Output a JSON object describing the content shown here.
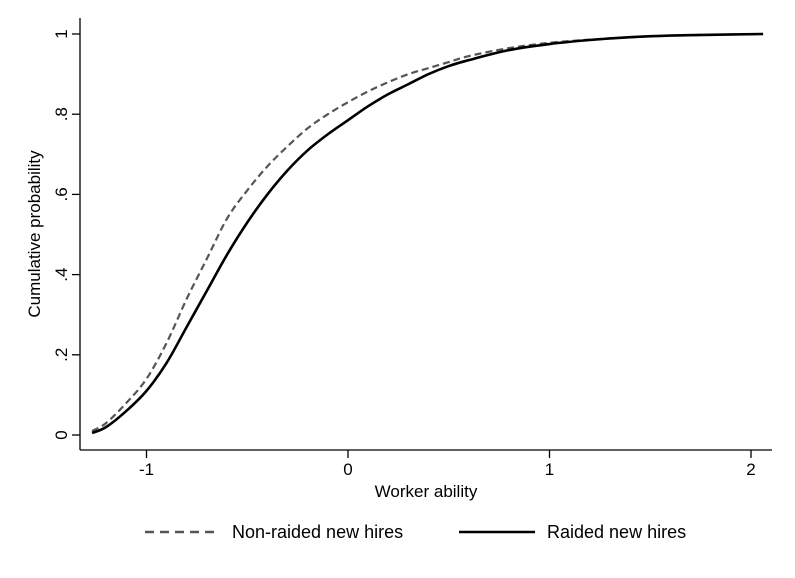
{
  "chart_data": {
    "type": "line",
    "title": "",
    "xlabel": "Worker ability",
    "ylabel": "Cumulative probability",
    "xlim": [
      -1.3,
      2.06
    ],
    "ylim": [
      0,
      1
    ],
    "xticks": [
      {
        "value": -1,
        "label": "-1"
      },
      {
        "value": 0,
        "label": "0"
      },
      {
        "value": 1,
        "label": "1"
      },
      {
        "value": 2,
        "label": "2"
      }
    ],
    "yticks": [
      {
        "value": 0,
        "label": "0"
      },
      {
        "value": 0.2,
        "label": ".2"
      },
      {
        "value": 0.4,
        "label": ".4"
      },
      {
        "value": 0.6,
        "label": ".6"
      },
      {
        "value": 0.8,
        "label": ".8"
      },
      {
        "value": 1,
        "label": "1"
      }
    ],
    "grid": false,
    "legend_position": "bottom",
    "series": [
      {
        "name": "Non-raided new hires",
        "style": "dashed",
        "color": "#555555",
        "points": [
          [
            -1.27,
            0.01
          ],
          [
            -1.2,
            0.03
          ],
          [
            -1.1,
            0.08
          ],
          [
            -1.0,
            0.14
          ],
          [
            -0.9,
            0.23
          ],
          [
            -0.8,
            0.34
          ],
          [
            -0.7,
            0.44
          ],
          [
            -0.6,
            0.54
          ],
          [
            -0.5,
            0.61
          ],
          [
            -0.4,
            0.67
          ],
          [
            -0.3,
            0.72
          ],
          [
            -0.2,
            0.765
          ],
          [
            -0.1,
            0.8
          ],
          [
            0.0,
            0.83
          ],
          [
            0.1,
            0.857
          ],
          [
            0.2,
            0.88
          ],
          [
            0.3,
            0.9
          ],
          [
            0.4,
            0.915
          ],
          [
            0.5,
            0.93
          ],
          [
            0.6,
            0.945
          ],
          [
            0.8,
            0.965
          ],
          [
            1.0,
            0.978
          ],
          [
            1.2,
            0.986
          ],
          [
            1.4,
            0.992
          ],
          [
            1.6,
            0.996
          ],
          [
            1.8,
            0.998
          ],
          [
            2.06,
            1.0
          ]
        ]
      },
      {
        "name": "Raided new hires",
        "style": "solid",
        "color": "#000000",
        "points": [
          [
            -1.27,
            0.005
          ],
          [
            -1.2,
            0.02
          ],
          [
            -1.1,
            0.06
          ],
          [
            -1.0,
            0.11
          ],
          [
            -0.9,
            0.18
          ],
          [
            -0.8,
            0.27
          ],
          [
            -0.7,
            0.36
          ],
          [
            -0.6,
            0.45
          ],
          [
            -0.5,
            0.53
          ],
          [
            -0.4,
            0.6
          ],
          [
            -0.3,
            0.66
          ],
          [
            -0.2,
            0.71
          ],
          [
            -0.1,
            0.75
          ],
          [
            0.0,
            0.785
          ],
          [
            0.1,
            0.82
          ],
          [
            0.2,
            0.85
          ],
          [
            0.3,
            0.875
          ],
          [
            0.4,
            0.9
          ],
          [
            0.5,
            0.92
          ],
          [
            0.6,
            0.935
          ],
          [
            0.8,
            0.96
          ],
          [
            1.0,
            0.975
          ],
          [
            1.2,
            0.985
          ],
          [
            1.4,
            0.992
          ],
          [
            1.6,
            0.996
          ],
          [
            1.8,
            0.998
          ],
          [
            2.06,
            1.0
          ]
        ]
      }
    ]
  }
}
